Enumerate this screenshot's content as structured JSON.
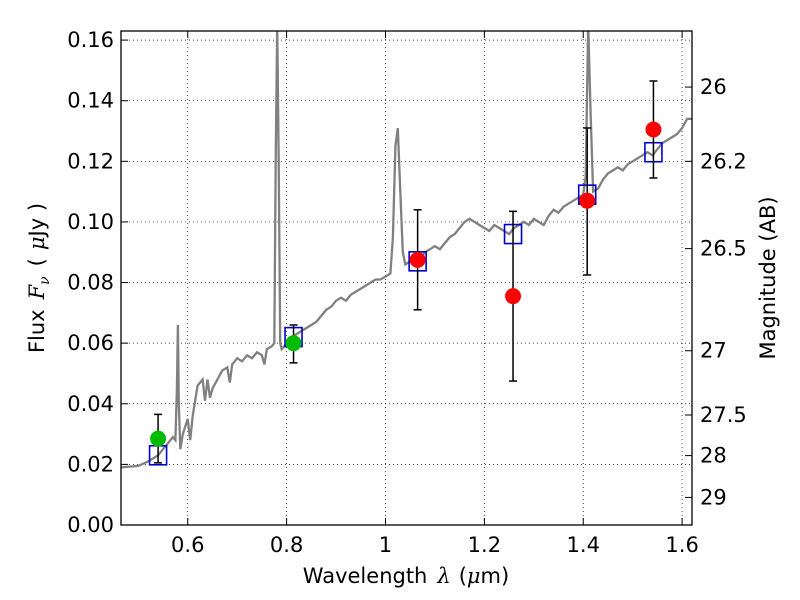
{
  "chart_data": {
    "type": "scatter",
    "xlabel": "Wavelength",
    "xlabel_symbol": "λ",
    "xlabel_unit_open": "(",
    "xlabel_unit_mu": "μ",
    "xlabel_unit_rest": "m)",
    "ylabel": "Flux",
    "ylabel_symbol": "F",
    "ylabel_sub": "ν",
    "ylabel_unit_open": "(",
    "ylabel_unit_mu": "μ",
    "ylabel_unit_rest": "Jy )",
    "y2label": "Magnitude (AB)",
    "xlim": [
      0.465,
      1.62
    ],
    "ylim": [
      0.0,
      0.163
    ],
    "grid": true,
    "x_ticks": [
      {
        "value": 0.6,
        "label": "0.6"
      },
      {
        "value": 0.8,
        "label": "0.8"
      },
      {
        "value": 1.0,
        "label": "1"
      },
      {
        "value": 1.2,
        "label": "1.2"
      },
      {
        "value": 1.4,
        "label": "1.4"
      },
      {
        "value": 1.6,
        "label": "1.6"
      }
    ],
    "y_ticks": [
      {
        "value": 0.0,
        "label": "0.00"
      },
      {
        "value": 0.02,
        "label": "0.02"
      },
      {
        "value": 0.04,
        "label": "0.04"
      },
      {
        "value": 0.06,
        "label": "0.06"
      },
      {
        "value": 0.08,
        "label": "0.08"
      },
      {
        "value": 0.1,
        "label": "0.10"
      },
      {
        "value": 0.12,
        "label": "0.12"
      },
      {
        "value": 0.14,
        "label": "0.14"
      },
      {
        "value": 0.16,
        "label": "0.16"
      }
    ],
    "y2_ticks": [
      {
        "flux": 0.1445,
        "label": "26"
      },
      {
        "flux": 0.12,
        "label": "26.2"
      },
      {
        "flux": 0.0912,
        "label": "26.5"
      },
      {
        "flux": 0.0575,
        "label": "27"
      },
      {
        "flux": 0.0363,
        "label": "27.5"
      },
      {
        "flux": 0.0229,
        "label": "28"
      },
      {
        "flux": 0.0091,
        "label": "29"
      }
    ],
    "colors": {
      "spectrum": "#808080",
      "model_box": "#0000cc",
      "green_point": "#00bb00",
      "red_point": "#ff0000",
      "error_bar": "#000000"
    },
    "spectrum": [
      [
        0.465,
        0.019
      ],
      [
        0.5,
        0.0195
      ],
      [
        0.52,
        0.021
      ],
      [
        0.54,
        0.023
      ],
      [
        0.55,
        0.025
      ],
      [
        0.56,
        0.027
      ],
      [
        0.57,
        0.029
      ],
      [
        0.575,
        0.028
      ],
      [
        0.578,
        0.045
      ],
      [
        0.58,
        0.066
      ],
      [
        0.582,
        0.04
      ],
      [
        0.585,
        0.025
      ],
      [
        0.59,
        0.03
      ],
      [
        0.6,
        0.035
      ],
      [
        0.605,
        0.028
      ],
      [
        0.61,
        0.036
      ],
      [
        0.62,
        0.046
      ],
      [
        0.63,
        0.048
      ],
      [
        0.635,
        0.041
      ],
      [
        0.64,
        0.048
      ],
      [
        0.645,
        0.042
      ],
      [
        0.65,
        0.045
      ],
      [
        0.66,
        0.048
      ],
      [
        0.67,
        0.051
      ],
      [
        0.68,
        0.052
      ],
      [
        0.685,
        0.047
      ],
      [
        0.69,
        0.053
      ],
      [
        0.7,
        0.055
      ],
      [
        0.71,
        0.054
      ],
      [
        0.72,
        0.056
      ],
      [
        0.73,
        0.055
      ],
      [
        0.74,
        0.057
      ],
      [
        0.75,
        0.056
      ],
      [
        0.755,
        0.053
      ],
      [
        0.76,
        0.058
      ],
      [
        0.77,
        0.059
      ],
      [
        0.775,
        0.06
      ],
      [
        0.778,
        0.12
      ],
      [
        0.781,
        0.165
      ],
      [
        0.784,
        0.12
      ],
      [
        0.787,
        0.06
      ],
      [
        0.79,
        0.058
      ],
      [
        0.8,
        0.06
      ],
      [
        0.81,
        0.062
      ],
      [
        0.82,
        0.063
      ],
      [
        0.83,
        0.064
      ],
      [
        0.84,
        0.065
      ],
      [
        0.85,
        0.066
      ],
      [
        0.86,
        0.067
      ],
      [
        0.87,
        0.069
      ],
      [
        0.88,
        0.071
      ],
      [
        0.89,
        0.072
      ],
      [
        0.9,
        0.074
      ],
      [
        0.91,
        0.075
      ],
      [
        0.92,
        0.074
      ],
      [
        0.93,
        0.076
      ],
      [
        0.94,
        0.077
      ],
      [
        0.95,
        0.078
      ],
      [
        0.96,
        0.079
      ],
      [
        0.97,
        0.08
      ],
      [
        0.98,
        0.081
      ],
      [
        0.99,
        0.081
      ],
      [
        1.0,
        0.082
      ],
      [
        1.01,
        0.083
      ],
      [
        1.015,
        0.095
      ],
      [
        1.02,
        0.125
      ],
      [
        1.025,
        0.131
      ],
      [
        1.03,
        0.11
      ],
      [
        1.035,
        0.09
      ],
      [
        1.04,
        0.086
      ],
      [
        1.05,
        0.087
      ],
      [
        1.06,
        0.088
      ],
      [
        1.07,
        0.088
      ],
      [
        1.08,
        0.09
      ],
      [
        1.09,
        0.091
      ],
      [
        1.1,
        0.092
      ],
      [
        1.11,
        0.091
      ],
      [
        1.12,
        0.093
      ],
      [
        1.13,
        0.095
      ],
      [
        1.14,
        0.096
      ],
      [
        1.15,
        0.098
      ],
      [
        1.16,
        0.1
      ],
      [
        1.17,
        0.101
      ],
      [
        1.18,
        0.1
      ],
      [
        1.19,
        0.099
      ],
      [
        1.2,
        0.098
      ],
      [
        1.21,
        0.097
      ],
      [
        1.22,
        0.099
      ],
      [
        1.23,
        0.098
      ],
      [
        1.24,
        0.097
      ],
      [
        1.25,
        0.096
      ],
      [
        1.26,
        0.098
      ],
      [
        1.27,
        0.099
      ],
      [
        1.28,
        0.1
      ],
      [
        1.29,
        0.099
      ],
      [
        1.3,
        0.101
      ],
      [
        1.31,
        0.1
      ],
      [
        1.32,
        0.099
      ],
      [
        1.33,
        0.102
      ],
      [
        1.34,
        0.104
      ],
      [
        1.35,
        0.103
      ],
      [
        1.36,
        0.105
      ],
      [
        1.37,
        0.106
      ],
      [
        1.38,
        0.107
      ],
      [
        1.39,
        0.108
      ],
      [
        1.4,
        0.109
      ],
      [
        1.405,
        0.115
      ],
      [
        1.41,
        0.165
      ],
      [
        1.415,
        0.135
      ],
      [
        1.42,
        0.11
      ],
      [
        1.43,
        0.111
      ],
      [
        1.44,
        0.114
      ],
      [
        1.45,
        0.116
      ],
      [
        1.46,
        0.117
      ],
      [
        1.47,
        0.118
      ],
      [
        1.48,
        0.117
      ],
      [
        1.49,
        0.119
      ],
      [
        1.5,
        0.12
      ],
      [
        1.51,
        0.121
      ],
      [
        1.52,
        0.122
      ],
      [
        1.53,
        0.123
      ],
      [
        1.54,
        0.122
      ],
      [
        1.55,
        0.124
      ],
      [
        1.56,
        0.126
      ],
      [
        1.57,
        0.127
      ],
      [
        1.58,
        0.128
      ],
      [
        1.59,
        0.129
      ],
      [
        1.6,
        0.131
      ],
      [
        1.61,
        0.134
      ],
      [
        1.62,
        0.134
      ]
    ],
    "model_boxes": [
      {
        "x": 0.54,
        "y": 0.023
      },
      {
        "x": 0.814,
        "y": 0.062
      },
      {
        "x": 1.065,
        "y": 0.087
      },
      {
        "x": 1.258,
        "y": 0.096
      },
      {
        "x": 1.408,
        "y": 0.109
      },
      {
        "x": 1.542,
        "y": 0.123
      }
    ],
    "points": [
      {
        "x": 0.54,
        "y": 0.0285,
        "yerr_low": 0.0205,
        "yerr_high": 0.0365,
        "color": "green"
      },
      {
        "x": 0.814,
        "y": 0.06,
        "yerr_low": 0.0535,
        "yerr_high": 0.066,
        "color": "green"
      },
      {
        "x": 1.065,
        "y": 0.0875,
        "yerr_low": 0.071,
        "yerr_high": 0.104,
        "color": "red"
      },
      {
        "x": 1.258,
        "y": 0.0755,
        "yerr_low": 0.0475,
        "yerr_high": 0.1035,
        "color": "red"
      },
      {
        "x": 1.408,
        "y": 0.107,
        "yerr_low": 0.0825,
        "yerr_high": 0.131,
        "color": "red"
      },
      {
        "x": 1.542,
        "y": 0.1305,
        "yerr_low": 0.1145,
        "yerr_high": 0.1465,
        "color": "red"
      }
    ]
  }
}
